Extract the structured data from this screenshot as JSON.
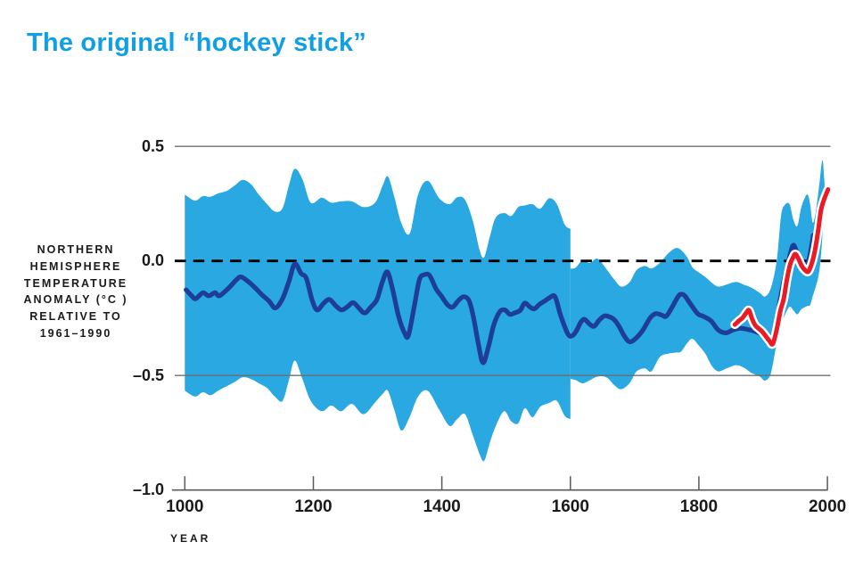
{
  "title": "The original “hockey stick”",
  "colors": {
    "title": "#119fe3",
    "band": "#29a8e2",
    "reconstruction": "#1d3d99",
    "instrumental": "#e81b26",
    "instrumental_halo": "#ffffff",
    "axis": "#58595b",
    "grid": "#6d6e71",
    "zero_dash": "#000000",
    "text": "#1a1a1a",
    "background": "#ffffff"
  },
  "chart_data": {
    "type": "area",
    "title": "The original “hockey stick”",
    "xlabel": "YEAR",
    "ylabel_lines": [
      "NORTHERN",
      "HEMISPHERE",
      "TEMPERATURE",
      "ANOMALY (°C )",
      "RELATIVE TO",
      "1961–1990"
    ],
    "xlim": [
      1000,
      2005
    ],
    "ylim": [
      -1.0,
      0.55
    ],
    "grid": "horizontal lines at +0.5 and -0.5, dashed zero line",
    "legend_position": "none",
    "x_ticks": [
      {
        "value": 1000,
        "label": "1000"
      },
      {
        "value": 1200,
        "label": "1200"
      },
      {
        "value": 1400,
        "label": "1400"
      },
      {
        "value": 1600,
        "label": "1600"
      },
      {
        "value": 1800,
        "label": "1800"
      },
      {
        "value": 2000,
        "label": "2000"
      }
    ],
    "y_ticks": [
      {
        "value": 0.5,
        "label": "0.5"
      },
      {
        "value": 0.0,
        "label": "0.0"
      },
      {
        "value": -0.5,
        "label": "–0.5"
      },
      {
        "value": -1.0,
        "label": "–1.0"
      }
    ],
    "series": [
      {
        "name": "uncertainty-band-1000-1600",
        "type": "band",
        "points_format": [
          "year",
          "lower",
          "upper"
        ],
        "points": [
          [
            1000,
            -0.566,
            0.29
          ],
          [
            1016,
            -0.592,
            0.263
          ],
          [
            1028,
            -0.573,
            0.283
          ],
          [
            1040,
            -0.586,
            0.28
          ],
          [
            1052,
            -0.566,
            0.295
          ],
          [
            1065,
            -0.547,
            0.305
          ],
          [
            1078,
            -0.528,
            0.33
          ],
          [
            1090,
            -0.508,
            0.354
          ],
          [
            1103,
            -0.515,
            0.335
          ],
          [
            1115,
            -0.534,
            0.29
          ],
          [
            1128,
            -0.555,
            0.248
          ],
          [
            1140,
            -0.592,
            0.216
          ],
          [
            1152,
            -0.611,
            0.23
          ],
          [
            1162,
            -0.52,
            0.33
          ],
          [
            1171,
            -0.435,
            0.402
          ],
          [
            1183,
            -0.515,
            0.357
          ],
          [
            1196,
            -0.611,
            0.254
          ],
          [
            1213,
            -0.656,
            0.276
          ],
          [
            1228,
            -0.631,
            0.254
          ],
          [
            1243,
            -0.656,
            0.26
          ],
          [
            1260,
            -0.624,
            0.26
          ],
          [
            1278,
            -0.669,
            0.235
          ],
          [
            1296,
            -0.618,
            0.254
          ],
          [
            1308,
            -0.58,
            0.33
          ],
          [
            1316,
            -0.567,
            0.369
          ],
          [
            1326,
            -0.65,
            0.28
          ],
          [
            1337,
            -0.74,
            0.165
          ],
          [
            1350,
            -0.68,
            0.12
          ],
          [
            1363,
            -0.592,
            0.29
          ],
          [
            1378,
            -0.567,
            0.35
          ],
          [
            1396,
            -0.65,
            0.273
          ],
          [
            1412,
            -0.72,
            0.248
          ],
          [
            1424,
            -0.69,
            0.278
          ],
          [
            1436,
            -0.669,
            0.267
          ],
          [
            1448,
            -0.759,
            0.177
          ],
          [
            1459,
            -0.845,
            0.045
          ],
          [
            1466,
            -0.872,
            0.017
          ],
          [
            1475,
            -0.79,
            0.11
          ],
          [
            1484,
            -0.72,
            0.19
          ],
          [
            1497,
            -0.656,
            0.209
          ],
          [
            1508,
            -0.7,
            0.196
          ],
          [
            1519,
            -0.708,
            0.235
          ],
          [
            1529,
            -0.643,
            0.242
          ],
          [
            1541,
            -0.682,
            0.248
          ],
          [
            1553,
            -0.637,
            0.228
          ],
          [
            1567,
            -0.62,
            0.273
          ],
          [
            1579,
            -0.611,
            0.248
          ],
          [
            1591,
            -0.675,
            0.16
          ],
          [
            1600,
            -0.69,
            0.14
          ]
        ]
      },
      {
        "name": "uncertainty-band-1600-1996",
        "type": "band",
        "points_format": [
          "year",
          "lower",
          "upper"
        ],
        "points": [
          [
            1600,
            -0.515,
            -0.033
          ],
          [
            1608,
            -0.52,
            -0.03
          ],
          [
            1619,
            -0.534,
            0.004
          ],
          [
            1630,
            -0.521,
            -0.009
          ],
          [
            1642,
            -0.505,
            0.01
          ],
          [
            1656,
            -0.508,
            -0.035
          ],
          [
            1668,
            -0.541,
            -0.08
          ],
          [
            1679,
            -0.56,
            -0.112
          ],
          [
            1692,
            -0.534,
            -0.093
          ],
          [
            1703,
            -0.482,
            -0.04
          ],
          [
            1716,
            -0.469,
            -0.022
          ],
          [
            1726,
            -0.482,
            -0.033
          ],
          [
            1739,
            -0.42,
            -0.009
          ],
          [
            1752,
            -0.405,
            0.032
          ],
          [
            1764,
            -0.4,
            0.056
          ],
          [
            1772,
            -0.396,
            0.048
          ],
          [
            1782,
            -0.358,
            0.015
          ],
          [
            1790,
            -0.34,
            -0.028
          ],
          [
            1800,
            -0.37,
            -0.05
          ],
          [
            1810,
            -0.405,
            -0.07
          ],
          [
            1820,
            -0.458,
            -0.095
          ],
          [
            1830,
            -0.482,
            -0.112
          ],
          [
            1843,
            -0.469,
            -0.103
          ],
          [
            1858,
            -0.455,
            -0.092
          ],
          [
            1870,
            -0.466,
            -0.104
          ],
          [
            1882,
            -0.489,
            -0.117
          ],
          [
            1895,
            -0.505,
            -0.14
          ],
          [
            1903,
            -0.522,
            -0.155
          ],
          [
            1912,
            -0.49,
            -0.118
          ],
          [
            1921,
            -0.36,
            0.0
          ],
          [
            1928,
            -0.28,
            0.2
          ],
          [
            1934,
            -0.235,
            0.245
          ],
          [
            1941,
            -0.2,
            0.248
          ],
          [
            1947,
            -0.215,
            0.18
          ],
          [
            1953,
            -0.233,
            0.152
          ],
          [
            1959,
            -0.212,
            0.23
          ],
          [
            1964,
            -0.203,
            0.27
          ],
          [
            1969,
            -0.196,
            0.29
          ],
          [
            1973,
            -0.193,
            0.25
          ],
          [
            1977,
            -0.155,
            0.168
          ],
          [
            1981,
            -0.12,
            0.2
          ],
          [
            1985,
            -0.08,
            0.28
          ],
          [
            1988,
            -0.03,
            0.35
          ],
          [
            1991,
            0.06,
            0.425
          ],
          [
            1993,
            0.15,
            0.434
          ],
          [
            1995,
            0.23,
            0.36
          ],
          [
            1996,
            0.27,
            0.3
          ]
        ]
      },
      {
        "name": "reconstruction-smoothed",
        "type": "line",
        "points_format": [
          "year",
          "anomaly_c"
        ],
        "points": [
          [
            1002,
            -0.126
          ],
          [
            1010,
            -0.15
          ],
          [
            1017,
            -0.165
          ],
          [
            1028,
            -0.139
          ],
          [
            1037,
            -0.152
          ],
          [
            1047,
            -0.139
          ],
          [
            1054,
            -0.152
          ],
          [
            1068,
            -0.119
          ],
          [
            1081,
            -0.08
          ],
          [
            1088,
            -0.07
          ],
          [
            1100,
            -0.093
          ],
          [
            1110,
            -0.119
          ],
          [
            1119,
            -0.145
          ],
          [
            1131,
            -0.175
          ],
          [
            1141,
            -0.205
          ],
          [
            1152,
            -0.165
          ],
          [
            1162,
            -0.09
          ],
          [
            1171,
            -0.013
          ],
          [
            1181,
            -0.055
          ],
          [
            1189,
            -0.075
          ],
          [
            1198,
            -0.17
          ],
          [
            1206,
            -0.214
          ],
          [
            1216,
            -0.185
          ],
          [
            1225,
            -0.168
          ],
          [
            1235,
            -0.196
          ],
          [
            1244,
            -0.214
          ],
          [
            1253,
            -0.2
          ],
          [
            1262,
            -0.182
          ],
          [
            1271,
            -0.206
          ],
          [
            1280,
            -0.227
          ],
          [
            1290,
            -0.2
          ],
          [
            1299,
            -0.168
          ],
          [
            1307,
            -0.095
          ],
          [
            1315,
            -0.048
          ],
          [
            1323,
            -0.12
          ],
          [
            1333,
            -0.245
          ],
          [
            1342,
            -0.315
          ],
          [
            1348,
            -0.325
          ],
          [
            1357,
            -0.2
          ],
          [
            1365,
            -0.082
          ],
          [
            1373,
            -0.06
          ],
          [
            1381,
            -0.064
          ],
          [
            1391,
            -0.122
          ],
          [
            1399,
            -0.152
          ],
          [
            1409,
            -0.192
          ],
          [
            1417,
            -0.201
          ],
          [
            1426,
            -0.172
          ],
          [
            1434,
            -0.156
          ],
          [
            1442,
            -0.172
          ],
          [
            1449,
            -0.242
          ],
          [
            1457,
            -0.365
          ],
          [
            1464,
            -0.444
          ],
          [
            1472,
            -0.38
          ],
          [
            1481,
            -0.278
          ],
          [
            1490,
            -0.222
          ],
          [
            1498,
            -0.214
          ],
          [
            1506,
            -0.233
          ],
          [
            1514,
            -0.226
          ],
          [
            1522,
            -0.215
          ],
          [
            1529,
            -0.184
          ],
          [
            1537,
            -0.201
          ],
          [
            1544,
            -0.209
          ],
          [
            1552,
            -0.189
          ],
          [
            1560,
            -0.175
          ],
          [
            1567,
            -0.162
          ],
          [
            1576,
            -0.156
          ],
          [
            1585,
            -0.24
          ],
          [
            1596,
            -0.318
          ],
          [
            1603,
            -0.327
          ],
          [
            1610,
            -0.302
          ],
          [
            1616,
            -0.268
          ],
          [
            1622,
            -0.255
          ],
          [
            1630,
            -0.276
          ],
          [
            1637,
            -0.285
          ],
          [
            1645,
            -0.258
          ],
          [
            1653,
            -0.24
          ],
          [
            1660,
            -0.243
          ],
          [
            1668,
            -0.256
          ],
          [
            1675,
            -0.282
          ],
          [
            1684,
            -0.328
          ],
          [
            1692,
            -0.353
          ],
          [
            1701,
            -0.34
          ],
          [
            1713,
            -0.301
          ],
          [
            1724,
            -0.249
          ],
          [
            1733,
            -0.23
          ],
          [
            1742,
            -0.236
          ],
          [
            1749,
            -0.242
          ],
          [
            1758,
            -0.203
          ],
          [
            1767,
            -0.158
          ],
          [
            1772,
            -0.145
          ],
          [
            1778,
            -0.152
          ],
          [
            1786,
            -0.184
          ],
          [
            1798,
            -0.23
          ],
          [
            1807,
            -0.242
          ],
          [
            1819,
            -0.262
          ],
          [
            1830,
            -0.301
          ],
          [
            1842,
            -0.314
          ],
          [
            1853,
            -0.301
          ],
          [
            1865,
            -0.294
          ],
          [
            1879,
            -0.301
          ],
          [
            1890,
            -0.31
          ],
          [
            1898,
            -0.32
          ],
          [
            1904,
            -0.33
          ],
          [
            1911,
            -0.345
          ],
          [
            1918,
            -0.3
          ],
          [
            1926,
            -0.175
          ],
          [
            1932,
            -0.09
          ],
          [
            1938,
            -0.02
          ],
          [
            1944,
            0.05
          ],
          [
            1948,
            0.068
          ],
          [
            1953,
            0.03
          ],
          [
            1958,
            -0.008
          ],
          [
            1963,
            -0.035
          ],
          [
            1967,
            -0.02
          ],
          [
            1971,
            0.004
          ],
          [
            1975,
            0.06
          ],
          [
            1978,
            0.112
          ]
        ]
      },
      {
        "name": "instrumental-temperature",
        "type": "line",
        "points_format": [
          "year",
          "anomaly_c"
        ],
        "points": [
          [
            1856,
            -0.278
          ],
          [
            1862,
            -0.262
          ],
          [
            1868,
            -0.248
          ],
          [
            1874,
            -0.225
          ],
          [
            1878,
            -0.216
          ],
          [
            1883,
            -0.255
          ],
          [
            1888,
            -0.282
          ],
          [
            1893,
            -0.295
          ],
          [
            1899,
            -0.31
          ],
          [
            1905,
            -0.332
          ],
          [
            1910,
            -0.35
          ],
          [
            1915,
            -0.362
          ],
          [
            1921,
            -0.3
          ],
          [
            1927,
            -0.215
          ],
          [
            1932,
            -0.165
          ],
          [
            1937,
            -0.08
          ],
          [
            1942,
            -0.015
          ],
          [
            1946,
            0.012
          ],
          [
            1950,
            0.03
          ],
          [
            1955,
            0.008
          ],
          [
            1960,
            -0.022
          ],
          [
            1965,
            -0.04
          ],
          [
            1970,
            -0.047
          ],
          [
            1974,
            -0.024
          ],
          [
            1978,
            0.012
          ],
          [
            1982,
            0.068
          ],
          [
            1986,
            0.14
          ],
          [
            1990,
            0.222
          ],
          [
            1994,
            0.262
          ],
          [
            1998,
            0.292
          ],
          [
            2001,
            0.312
          ]
        ]
      }
    ]
  }
}
